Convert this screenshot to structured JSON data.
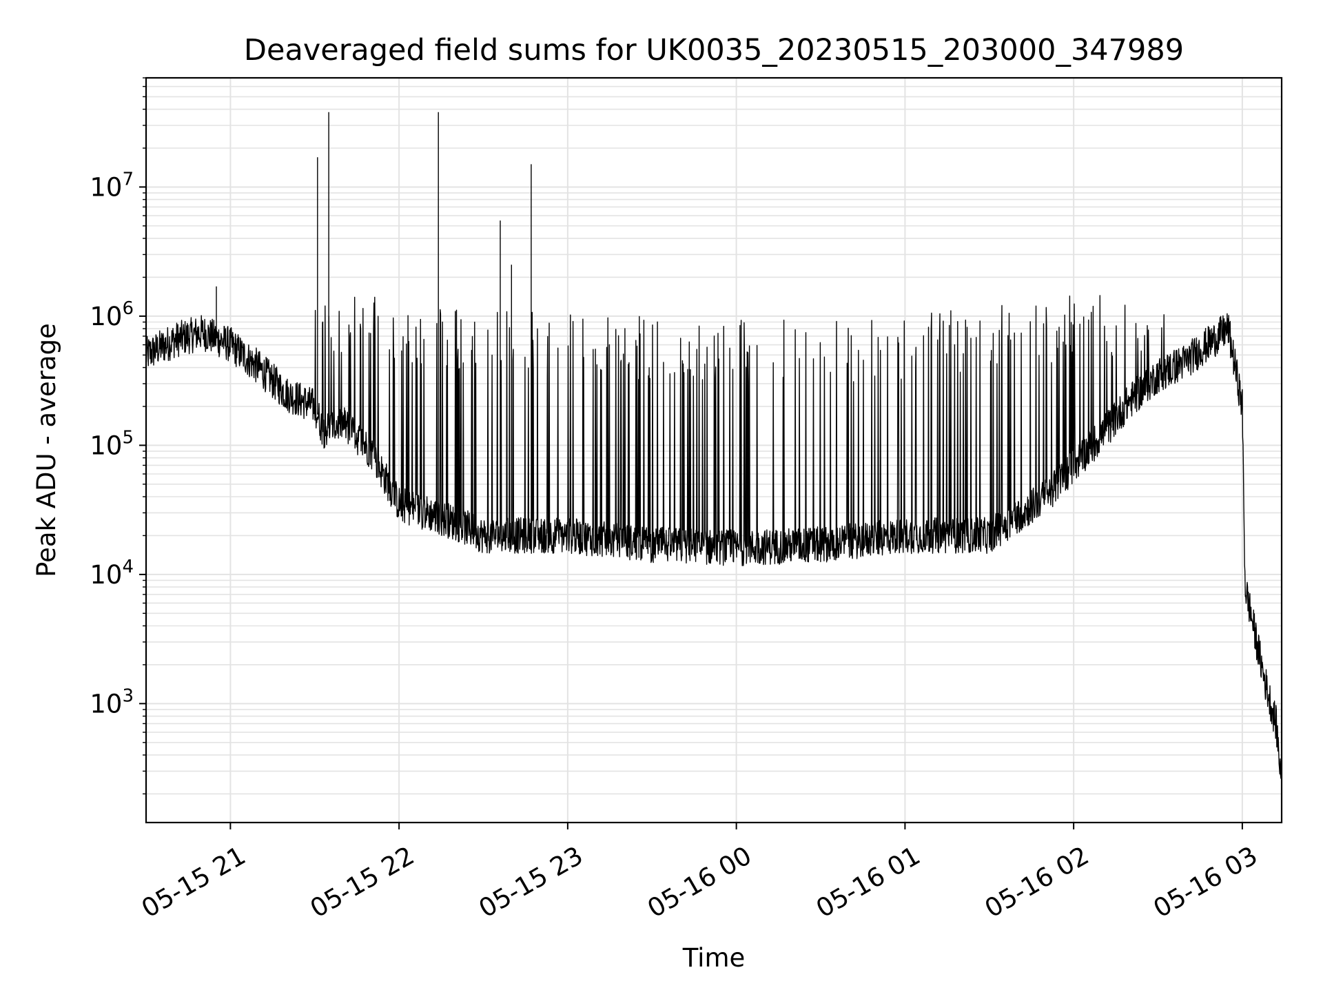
{
  "chart_data": {
    "type": "line",
    "title": "Deaveraged field sums for UK0035_20230515_203000_347989",
    "xlabel": "Time",
    "ylabel": "Peak ADU - average",
    "yscale": "log",
    "ylim": [
      120,
      70000000
    ],
    "xlim": [
      "2023-05-15 20:30",
      "2023-05-16 03:14"
    ],
    "grid": "major and minor",
    "x_ticks": [
      {
        "value": "2023-05-15 21:00",
        "label": "05-15 21"
      },
      {
        "value": "2023-05-15 22:00",
        "label": "05-15 22"
      },
      {
        "value": "2023-05-15 23:00",
        "label": "05-15 23"
      },
      {
        "value": "2023-05-16 00:00",
        "label": "05-16 00"
      },
      {
        "value": "2023-05-16 01:00",
        "label": "05-16 01"
      },
      {
        "value": "2023-05-16 02:00",
        "label": "05-16 02"
      },
      {
        "value": "2023-05-16 03:00",
        "label": "05-16 03"
      }
    ],
    "y_ticks": [
      {
        "value": 1000,
        "base": "10",
        "exp": "3"
      },
      {
        "value": 10000,
        "base": "10",
        "exp": "4"
      },
      {
        "value": 100000,
        "base": "10",
        "exp": "5"
      },
      {
        "value": 1000000,
        "base": "10",
        "exp": "6"
      },
      {
        "value": 10000000,
        "base": "10",
        "exp": "7"
      }
    ],
    "series": [
      {
        "color": "#000000",
        "points": [
          [
            "2023-05-15 20:30",
            500000
          ],
          [
            "2023-05-15 20:40",
            650000
          ],
          [
            "2023-05-15 20:50",
            750000
          ],
          [
            "2023-05-15 20:55",
            1700000
          ],
          [
            "2023-05-15 21:00",
            600000
          ],
          [
            "2023-05-15 21:10",
            400000
          ],
          [
            "2023-05-15 21:20",
            250000
          ],
          [
            "2023-05-15 21:30",
            200000
          ],
          [
            "2023-05-15 21:31",
            17000000
          ],
          [
            "2023-05-15 21:33",
            130000
          ],
          [
            "2023-05-15 21:35",
            38000000
          ],
          [
            "2023-05-15 21:40",
            150000
          ],
          [
            "2023-05-15 21:50",
            90000
          ],
          [
            "2023-05-15 22:00",
            35000
          ],
          [
            "2023-05-15 22:10",
            30000
          ],
          [
            "2023-05-15 22:14",
            38000000
          ],
          [
            "2023-05-15 22:20",
            25000
          ],
          [
            "2023-05-15 22:30",
            20000
          ],
          [
            "2023-05-15 22:36",
            5500000
          ],
          [
            "2023-05-15 22:40",
            2500000
          ],
          [
            "2023-05-15 22:47",
            15000000
          ],
          [
            "2023-05-15 23:00",
            20000
          ],
          [
            "2023-05-15 23:30",
            17000
          ],
          [
            "2023-05-16 00:00",
            16000
          ],
          [
            "2023-05-16 00:30",
            17000
          ],
          [
            "2023-05-16 01:00",
            20000
          ],
          [
            "2023-05-16 01:30",
            20000
          ],
          [
            "2023-05-16 01:50",
            40000
          ],
          [
            "2023-05-16 02:00",
            70000
          ],
          [
            "2023-05-16 02:10",
            120000
          ],
          [
            "2023-05-16 02:20",
            220000
          ],
          [
            "2023-05-16 02:30",
            350000
          ],
          [
            "2023-05-16 02:40",
            450000
          ],
          [
            "2023-05-16 02:55",
            800000
          ],
          [
            "2023-05-16 03:00",
            200000
          ],
          [
            "2023-05-16 03:01",
            8000
          ],
          [
            "2023-05-16 03:03",
            5000
          ],
          [
            "2023-05-16 03:08",
            1500
          ],
          [
            "2023-05-16 03:12",
            700
          ],
          [
            "2023-05-16 03:14",
            250
          ]
        ],
        "spike_upper_envelope": [
          [
            "2023-05-15 21:30",
            1300000
          ],
          [
            "2023-05-15 21:40",
            1600000
          ],
          [
            "2023-05-15 22:00",
            1300000
          ],
          [
            "2023-05-15 22:30",
            1100000
          ],
          [
            "2023-05-15 23:00",
            1050000
          ],
          [
            "2023-05-15 23:30",
            1000000
          ],
          [
            "2023-05-16 00:00",
            950000
          ],
          [
            "2023-05-16 00:30",
            950000
          ],
          [
            "2023-05-16 01:00",
            1000000
          ],
          [
            "2023-05-16 01:30",
            1200000
          ],
          [
            "2023-05-16 02:00",
            1450000
          ],
          [
            "2023-05-16 02:20",
            1600000
          ],
          [
            "2023-05-16 02:35",
            1100000
          ]
        ]
      }
    ]
  }
}
